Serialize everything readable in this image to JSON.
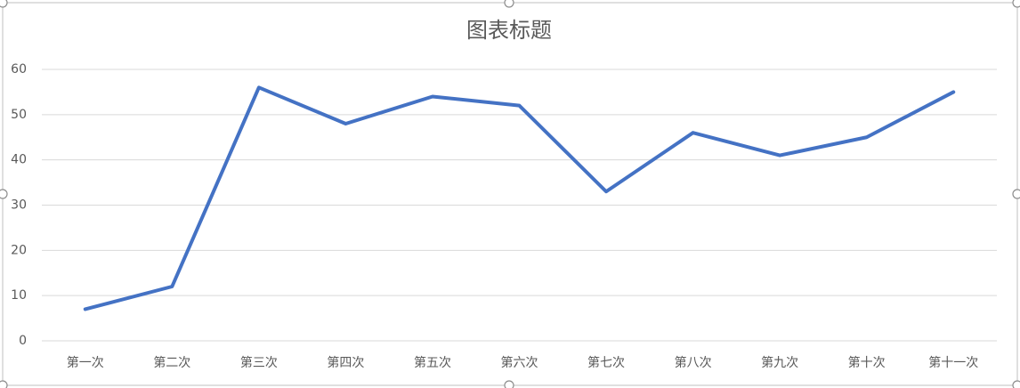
{
  "chart_data": {
    "type": "line",
    "title": "图表标题",
    "categories": [
      "第一次",
      "第二次",
      "第三次",
      "第四次",
      "第五次",
      "第六次",
      "第七次",
      "第八次",
      "第九次",
      "第十次",
      "第十一次"
    ],
    "values": [
      7,
      12,
      56,
      48,
      54,
      52,
      33,
      46,
      41,
      45,
      55
    ],
    "color": "#4472c4",
    "ylim": [
      0,
      60
    ],
    "yticks": [
      0,
      10,
      20,
      30,
      40,
      50,
      60
    ],
    "grid": true
  }
}
